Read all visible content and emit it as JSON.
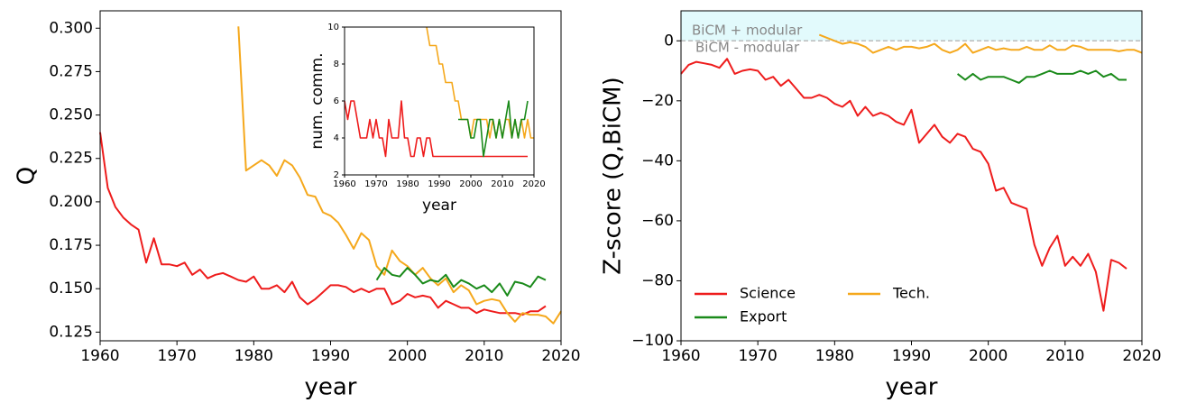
{
  "chart_data": [
    {
      "type": "line",
      "xlabel": "year",
      "ylabel": "Q",
      "xlim": [
        1960,
        2020
      ],
      "ylim": [
        0.12,
        0.31
      ],
      "xticks": [
        1960,
        1970,
        1980,
        1990,
        2000,
        2010,
        2020
      ],
      "yticks": [
        0.125,
        {
          "value": 0.15,
          "label": "0.150"
        },
        0.175,
        {
          "value": 0.2,
          "label": "0.200"
        },
        0.225,
        {
          "value": 0.25,
          "label": "0.250"
        },
        0.275,
        {
          "value": 0.3,
          "label": "0.300"
        }
      ],
      "series": [
        {
          "name": "Science",
          "color": "#ee1c1c",
          "x": [
            1960,
            1961,
            1962,
            1963,
            1964,
            1965,
            1966,
            1967,
            1968,
            1969,
            1970,
            1971,
            1972,
            1973,
            1974,
            1975,
            1976,
            1977,
            1978,
            1979,
            1980,
            1981,
            1982,
            1983,
            1984,
            1985,
            1986,
            1987,
            1988,
            1989,
            1990,
            1991,
            1992,
            1993,
            1994,
            1995,
            1996,
            1997,
            1998,
            1999,
            2000,
            2001,
            2002,
            2003,
            2004,
            2005,
            2006,
            2007,
            2008,
            2009,
            2010,
            2011,
            2012,
            2013,
            2014,
            2015,
            2016,
            2017,
            2018
          ],
          "values": [
            0.24,
            0.208,
            0.197,
            0.191,
            0.187,
            0.184,
            0.165,
            0.179,
            0.164,
            0.164,
            0.163,
            0.165,
            0.158,
            0.161,
            0.156,
            0.158,
            0.159,
            0.157,
            0.155,
            0.154,
            0.157,
            0.15,
            0.15,
            0.152,
            0.148,
            0.154,
            0.145,
            0.141,
            0.144,
            0.148,
            0.152,
            0.152,
            0.151,
            0.148,
            0.15,
            0.148,
            0.15,
            0.15,
            0.141,
            0.143,
            0.147,
            0.145,
            0.146,
            0.145,
            0.139,
            0.143,
            0.141,
            0.139,
            0.139,
            0.136,
            0.138,
            0.137,
            0.136,
            0.136,
            0.136,
            0.135,
            0.137,
            0.137,
            0.14
          ]
        },
        {
          "name": "Tech.",
          "color": "#f5a81c",
          "x": [
            1978,
            1979,
            1980,
            1981,
            1982,
            1983,
            1984,
            1985,
            1986,
            1987,
            1988,
            1989,
            1990,
            1991,
            1992,
            1993,
            1994,
            1995,
            1996,
            1997,
            1998,
            1999,
            2000,
            2001,
            2002,
            2003,
            2004,
            2005,
            2006,
            2007,
            2008,
            2009,
            2010,
            2011,
            2012,
            2013,
            2014,
            2015,
            2016,
            2017,
            2018,
            2019,
            2020
          ],
          "values": [
            0.301,
            0.218,
            0.221,
            0.224,
            0.221,
            0.215,
            0.224,
            0.221,
            0.214,
            0.204,
            0.203,
            0.194,
            0.192,
            0.188,
            0.181,
            0.173,
            0.182,
            0.178,
            0.163,
            0.158,
            0.172,
            0.166,
            0.163,
            0.158,
            0.162,
            0.156,
            0.152,
            0.156,
            0.148,
            0.152,
            0.149,
            0.141,
            0.143,
            0.144,
            0.143,
            0.136,
            0.131,
            0.136,
            0.135,
            0.135,
            0.134,
            0.13,
            0.137
          ]
        },
        {
          "name": "Export",
          "color": "#1a8a1a",
          "x": [
            1996,
            1997,
            1998,
            1999,
            2000,
            2001,
            2002,
            2003,
            2004,
            2005,
            2006,
            2007,
            2008,
            2009,
            2010,
            2011,
            2012,
            2013,
            2014,
            2015,
            2016,
            2017,
            2018
          ],
          "values": [
            0.155,
            0.162,
            0.158,
            0.157,
            0.162,
            0.158,
            0.153,
            0.155,
            0.154,
            0.158,
            0.151,
            0.155,
            0.153,
            0.15,
            0.152,
            0.148,
            0.153,
            0.146,
            0.154,
            0.153,
            0.151,
            0.157,
            0.155
          ]
        }
      ]
    },
    {
      "type": "line",
      "xlabel": "year",
      "ylabel": "num. comm.",
      "xlim": [
        1960,
        2020
      ],
      "ylim": [
        2,
        10
      ],
      "xticks": [
        1960,
        1970,
        1980,
        1990,
        2000,
        2010,
        2020
      ],
      "yticks": [
        2,
        4,
        6,
        8,
        10
      ],
      "series": [
        {
          "name": "Science",
          "color": "#ee1c1c",
          "x": [
            1960,
            1961,
            1962,
            1963,
            1964,
            1965,
            1966,
            1967,
            1968,
            1969,
            1970,
            1971,
            1972,
            1973,
            1974,
            1975,
            1976,
            1977,
            1978,
            1979,
            1980,
            1981,
            1982,
            1983,
            1984,
            1985,
            1986,
            1987,
            1988,
            1989,
            1990,
            1991,
            1992,
            1993,
            1994,
            1995,
            1996,
            1997,
            1998,
            1999,
            2000,
            2001,
            2002,
            2003,
            2004,
            2005,
            2006,
            2007,
            2008,
            2009,
            2010,
            2011,
            2012,
            2013,
            2014,
            2015,
            2016,
            2017,
            2018
          ],
          "values": [
            6,
            5,
            6,
            6,
            5,
            4,
            4,
            4,
            5,
            4,
            5,
            4,
            4,
            3,
            5,
            4,
            4,
            4,
            6,
            4,
            4,
            3,
            3,
            4,
            4,
            3,
            4,
            4,
            3,
            3,
            3,
            3,
            3,
            3,
            3,
            3,
            3,
            3,
            3,
            3,
            3,
            3,
            3,
            3,
            3,
            3,
            3,
            3,
            3,
            3,
            3,
            3,
            3,
            3,
            3,
            3,
            3,
            3,
            3
          ]
        },
        {
          "name": "Tech.",
          "color": "#f5a81c",
          "x": [
            1986,
            1987,
            1988,
            1989,
            1990,
            1991,
            1992,
            1993,
            1994,
            1995,
            1996,
            1997,
            1998,
            1999,
            2000,
            2001,
            2002,
            2003,
            2004,
            2005,
            2006,
            2007,
            2008,
            2009,
            2010,
            2011,
            2012,
            2013,
            2014,
            2015,
            2016,
            2017,
            2018,
            2019,
            2020
          ],
          "values": [
            10,
            9,
            9,
            9,
            8,
            8,
            7,
            7,
            7,
            6,
            6,
            5,
            5,
            5,
            4,
            5,
            5,
            5,
            5,
            5,
            4,
            5,
            4,
            5,
            4,
            5,
            5,
            4,
            5,
            4,
            5,
            4,
            5,
            4,
            4
          ]
        },
        {
          "name": "Export",
          "color": "#1a8a1a",
          "x": [
            1996,
            1997,
            1998,
            1999,
            2000,
            2001,
            2002,
            2003,
            2004,
            2005,
            2006,
            2007,
            2008,
            2009,
            2010,
            2011,
            2012,
            2013,
            2014,
            2015,
            2016,
            2017,
            2018
          ],
          "values": [
            5,
            5,
            5,
            5,
            4,
            4,
            5,
            5,
            3,
            4,
            5,
            5,
            4,
            5,
            4,
            5,
            6,
            4,
            5,
            4,
            5,
            5,
            6
          ]
        }
      ]
    },
    {
      "type": "line",
      "xlabel": "year",
      "ylabel": "Z-score (Q,BiCM)",
      "xlim": [
        1960,
        2020
      ],
      "ylim": [
        -100,
        10
      ],
      "xticks": [
        1960,
        1970,
        1980,
        1990,
        2000,
        2010,
        2020
      ],
      "yticks": [
        {
          "value": -100,
          "label": "−100"
        },
        {
          "value": -80,
          "label": "−80"
        },
        {
          "value": -60,
          "label": "−60"
        },
        {
          "value": -40,
          "label": "−40"
        },
        {
          "value": -20,
          "label": "−20"
        },
        0
      ],
      "shade_above": 0,
      "shade_color": "#e2fafc",
      "hline": 0,
      "annotations": [
        "BiCM + modular",
        "BiCM - modular"
      ],
      "legend_columns": 2,
      "series": [
        {
          "name": "Science",
          "color": "#ee1c1c",
          "x": [
            1960,
            1961,
            1962,
            1963,
            1964,
            1965,
            1966,
            1967,
            1968,
            1969,
            1970,
            1971,
            1972,
            1973,
            1974,
            1975,
            1976,
            1977,
            1978,
            1979,
            1980,
            1981,
            1982,
            1983,
            1984,
            1985,
            1986,
            1987,
            1988,
            1989,
            1990,
            1991,
            1992,
            1993,
            1994,
            1995,
            1996,
            1997,
            1998,
            1999,
            2000,
            2001,
            2002,
            2003,
            2004,
            2005,
            2006,
            2007,
            2008,
            2009,
            2010,
            2011,
            2012,
            2013,
            2014,
            2015,
            2016,
            2017,
            2018
          ],
          "values": [
            -11,
            -8,
            -7,
            -7.5,
            -8,
            -9,
            -6,
            -11,
            -10,
            -9.5,
            -10,
            -13,
            -12,
            -15,
            -13,
            -16,
            -19,
            -19,
            -18,
            -19,
            -21,
            -22,
            -20,
            -25,
            -22,
            -25,
            -24,
            -25,
            -27,
            -28,
            -23,
            -34,
            -31,
            -28,
            -32,
            -34,
            -31,
            -32,
            -36,
            -37,
            -41,
            -50,
            -49,
            -54,
            -55,
            -56,
            -68,
            -75,
            -69,
            -65,
            -75,
            -72,
            -75,
            -71,
            -77,
            -90,
            -73,
            -74,
            -76
          ]
        },
        {
          "name": "Export",
          "color": "#1a8a1a",
          "x": [
            1996,
            1997,
            1998,
            1999,
            2000,
            2001,
            2002,
            2003,
            2004,
            2005,
            2006,
            2007,
            2008,
            2009,
            2010,
            2011,
            2012,
            2013,
            2014,
            2015,
            2016,
            2017,
            2018
          ],
          "values": [
            -11,
            -13,
            -11,
            -13,
            -12,
            -12,
            -12,
            -13,
            -14,
            -12,
            -12,
            -11,
            -10,
            -11,
            -11,
            -11,
            -10,
            -11,
            -10,
            -12,
            -11,
            -13,
            -13
          ]
        },
        {
          "name": "Tech.",
          "color": "#f5a81c",
          "x": [
            1978,
            1979,
            1980,
            1981,
            1982,
            1983,
            1984,
            1985,
            1986,
            1987,
            1988,
            1989,
            1990,
            1991,
            1992,
            1993,
            1994,
            1995,
            1996,
            1997,
            1998,
            1999,
            2000,
            2001,
            2002,
            2003,
            2004,
            2005,
            2006,
            2007,
            2008,
            2009,
            2010,
            2011,
            2012,
            2013,
            2014,
            2015,
            2016,
            2017,
            2018,
            2019,
            2020
          ],
          "values": [
            2,
            1,
            0,
            -1,
            -0.5,
            -1,
            -2,
            -4,
            -3,
            -2,
            -3,
            -2,
            -2,
            -2.5,
            -2,
            -1,
            -3,
            -4,
            -3,
            -1,
            -4,
            -3,
            -2,
            -3,
            -2.5,
            -3,
            -3,
            -2,
            -3,
            -3,
            -1.5,
            -3,
            -3,
            -1.5,
            -2,
            -3,
            -3,
            -3,
            -3,
            -3.5,
            -3,
            -3,
            -4
          ]
        }
      ]
    }
  ]
}
